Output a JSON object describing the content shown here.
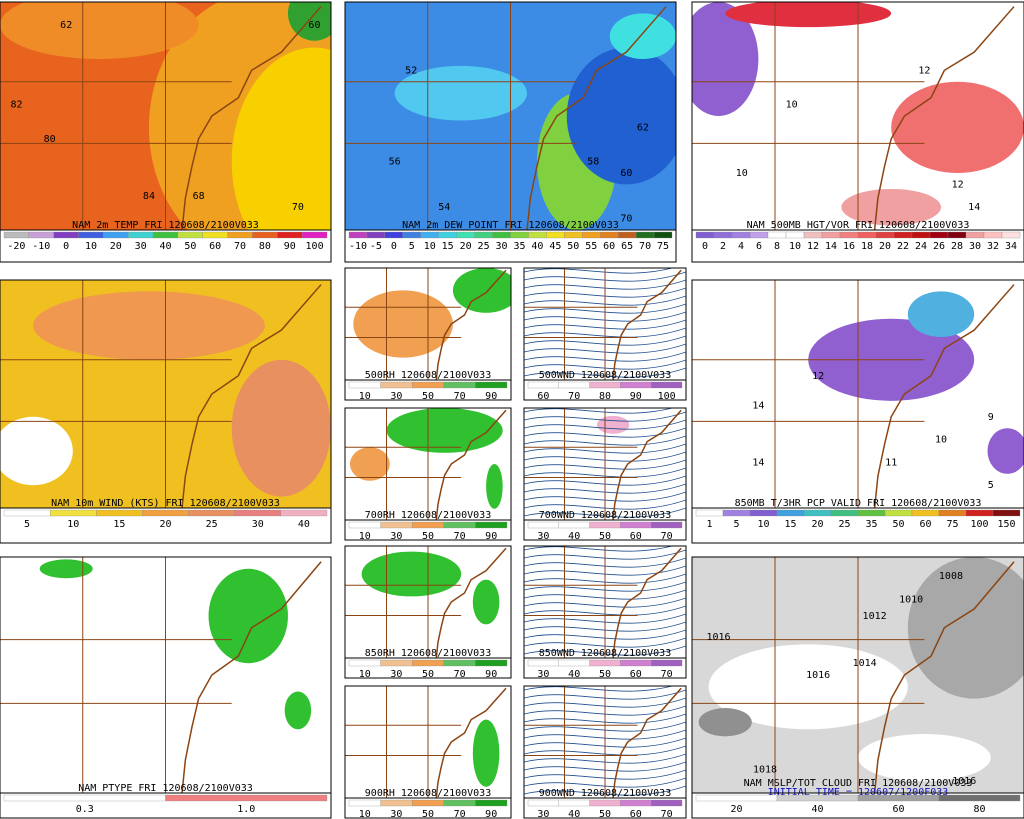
{
  "panels": [
    {
      "title": "NAM 2m TEMP FRI 120608/2100V033",
      "scale": [
        "-20",
        "-10",
        "0",
        "10",
        "20",
        "30",
        "40",
        "50",
        "60",
        "70",
        "80",
        "90",
        "100"
      ],
      "labels": [
        "82",
        "80",
        "84",
        "70",
        "68",
        "60",
        "62"
      ]
    },
    {
      "title": "NAM 2m DEW POINT FRI 120608/2100V033",
      "scale": [
        "-10",
        "-5",
        "0",
        "5",
        "10",
        "15",
        "20",
        "25",
        "30",
        "35",
        "40",
        "45",
        "50",
        "55",
        "60",
        "65",
        "70",
        "75"
      ],
      "labels": [
        "56",
        "54",
        "52",
        "58",
        "60",
        "62",
        "70"
      ]
    },
    {
      "title": "NAM 500MB HGT/VOR FRI 120608/2100V033",
      "scale": [
        "0",
        "2",
        "4",
        "6",
        "8",
        "10",
        "12",
        "14",
        "16",
        "18",
        "20",
        "22",
        "24",
        "26",
        "28",
        "30",
        "32",
        "34"
      ],
      "labels": [
        "10",
        "12",
        "14",
        "10",
        "12"
      ]
    },
    {
      "title": "NAM 10m WIND (KTS) FRI 120608/2100V033",
      "scale": [
        "5",
        "10",
        "15",
        "20",
        "25",
        "30",
        "40"
      ],
      "labels": []
    },
    {
      "title": "500RH 120608/2100V033",
      "scale": [
        "10",
        "30",
        "50",
        "70",
        "90"
      ],
      "labels": []
    },
    {
      "title": "500WND 120608/2100V033",
      "scale": [
        "60",
        "70",
        "80",
        "90",
        "100"
      ],
      "labels": []
    },
    {
      "title": "850MB T/3HR PCP VALID FRI 120608/2100V033",
      "scale": [
        "1",
        "5",
        "10",
        "15",
        "20",
        "25",
        "35",
        "50",
        "60",
        "75",
        "100",
        "150"
      ],
      "labels": [
        "12",
        "14",
        "14",
        "11",
        "9",
        "10",
        "5"
      ]
    },
    {
      "title": "700RH 120608/2100V033",
      "scale": [
        "10",
        "30",
        "50",
        "70",
        "90"
      ],
      "labels": []
    },
    {
      "title": "700WND 120608/2100V033",
      "scale": [
        "30",
        "40",
        "50",
        "60",
        "70"
      ],
      "labels": []
    },
    {
      "title": "NAM PTYPE FRI 120608/2100V033",
      "scale": [
        "0.3",
        "1.0"
      ],
      "labels": []
    },
    {
      "title": "850RH 120608/2100V033",
      "scale": [
        "10",
        "30",
        "50",
        "70",
        "90"
      ],
      "labels": []
    },
    {
      "title": "850WND 120608/2100V033",
      "scale": [
        "30",
        "40",
        "50",
        "60",
        "70"
      ],
      "labels": []
    },
    {
      "title": "NAM MSLP/TOT CLOUD FRI 120608/2100V033",
      "subtitle": "INITIAL TIME = 120607/1200F033",
      "scale": [
        "20",
        "40",
        "60",
        "80"
      ],
      "labels": [
        "1008",
        "1010",
        "1012",
        "1014",
        "1016",
        "1018",
        "1016",
        "1016"
      ]
    },
    {
      "title": "900RH 120608/2100V033",
      "scale": [
        "10",
        "30",
        "50",
        "70",
        "90"
      ],
      "labels": []
    },
    {
      "title": "900WND 120608/2100V033",
      "scale": [
        "30",
        "40",
        "50",
        "60",
        "70"
      ],
      "labels": []
    }
  ]
}
